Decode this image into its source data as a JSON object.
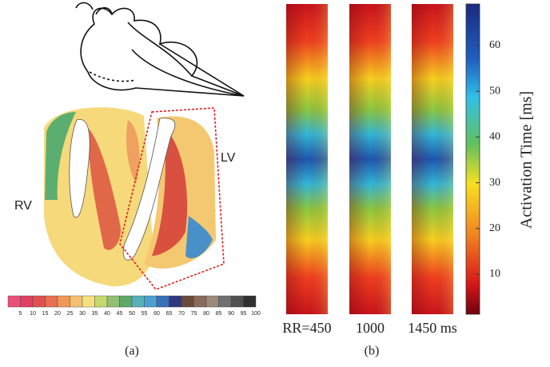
{
  "panel_a": {
    "caption": "(a)",
    "left_label": "RV",
    "right_label": "LV",
    "scale_labels": [
      "5",
      "10",
      "15",
      "20",
      "25",
      "30",
      "35",
      "40",
      "45",
      "50",
      "55",
      "60",
      "65",
      "70",
      "75",
      "80",
      "85",
      "90",
      "95",
      "100"
    ]
  },
  "panel_b": {
    "caption": "(b)",
    "column_labels": [
      "RR=450",
      "1000",
      "1450 ms"
    ],
    "colorbar_title": "Activation Time [ms]",
    "colorbar_ticks": [
      "60",
      "50",
      "40",
      "30",
      "20",
      "10"
    ]
  }
}
